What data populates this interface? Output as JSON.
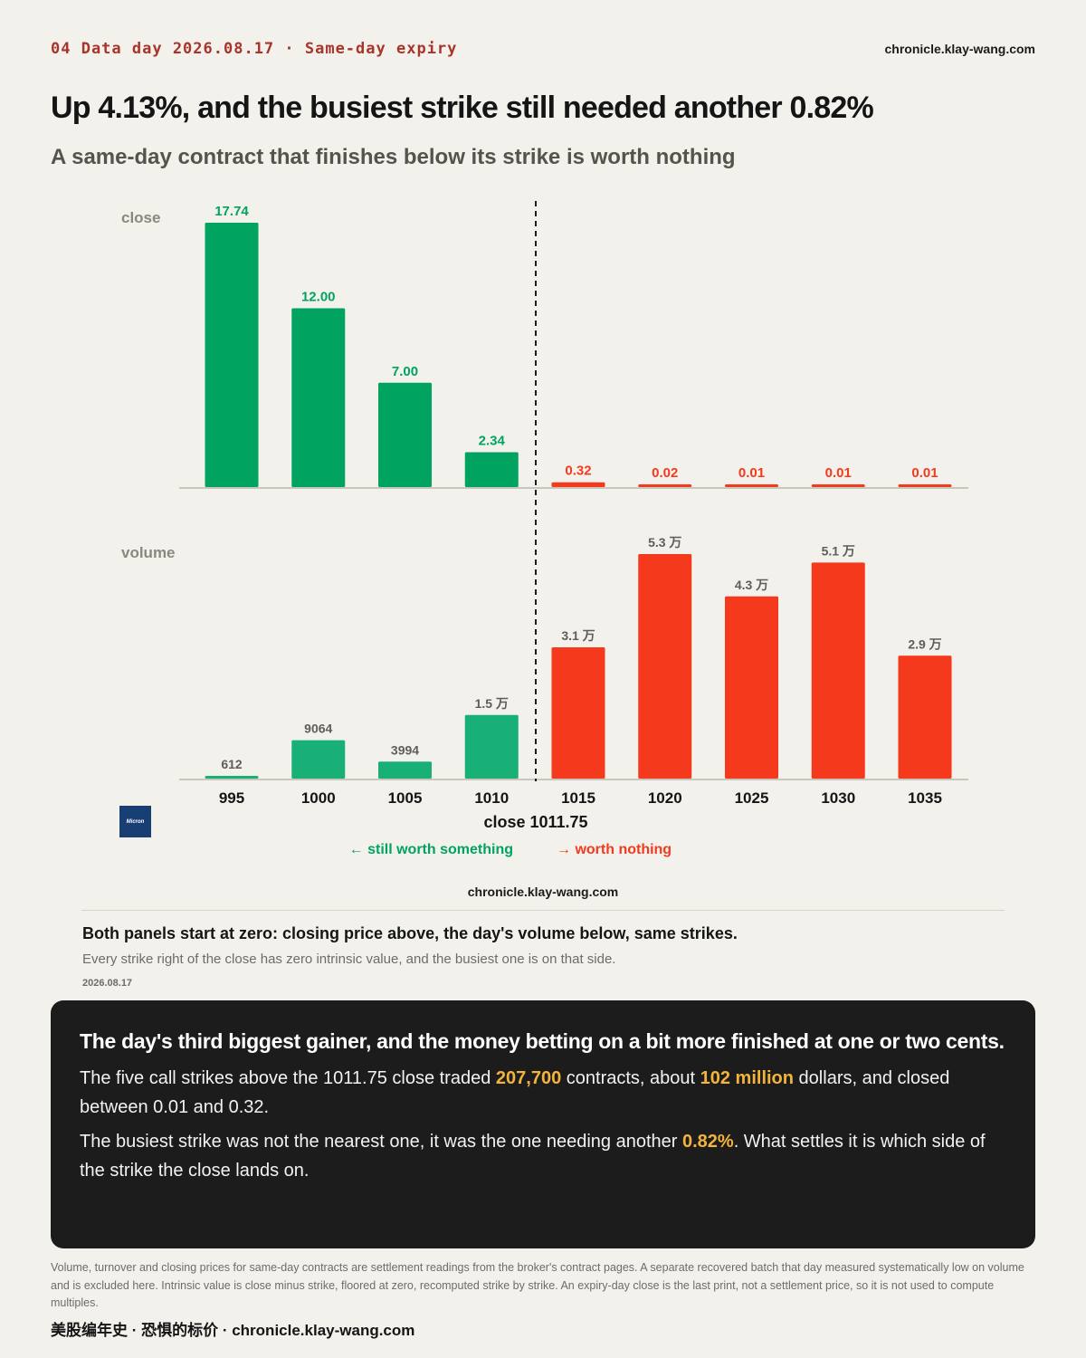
{
  "header": {
    "kicker": "04  Data day 2026.08.17 · Same-day expiry",
    "site": "chronicle.klay-wang.com",
    "title": "Up 4.13%, and the busiest strike still needed another 0.82%",
    "subtitle": "A same-day contract that finishes below its strike is worth nothing"
  },
  "colors": {
    "green": "#00a35f",
    "green_volume": "#18b077",
    "red": "#f5391c",
    "axis": "#c9c6bd",
    "panel_label": "#8a877e",
    "volume_label": "#5f5d57",
    "highlight": "#f2b43c",
    "dark_box": "#1c1c1c"
  },
  "logo": {
    "text": "Micron",
    "color": "#173f73"
  },
  "chart_data": {
    "type": "bar",
    "categories": [
      "995",
      "1000",
      "1005",
      "1010",
      "1015",
      "1020",
      "1025",
      "1030",
      "1035"
    ],
    "panels": [
      {
        "label": "close",
        "values": [
          17.74,
          12.0,
          7.0,
          2.34,
          0.32,
          0.02,
          0.01,
          0.01,
          0.01
        ],
        "value_labels": [
          "17.74",
          "12.00",
          "7.00",
          "2.34",
          "0.32",
          "0.02",
          "0.01",
          "0.01",
          "0.01"
        ],
        "ylim": [
          0,
          17.74
        ]
      },
      {
        "label": "volume",
        "values": [
          612,
          9064,
          3994,
          15000,
          31000,
          53000,
          43000,
          51000,
          29000
        ],
        "value_labels": [
          "612",
          "9064",
          "3994",
          "1.5 万",
          "3.1 万",
          "5.3 万",
          "4.3 万",
          "5.1 万",
          "2.9 万"
        ],
        "ylim": [
          0,
          53000
        ]
      }
    ],
    "split_after_index": 3,
    "close_label": "close 1011.75",
    "left_legend": "← still worth something",
    "right_legend": "→ worth nothing",
    "grid": false
  },
  "chart_footer": {
    "site": "chronicle.klay-wang.com",
    "note_title": "Both panels start at zero: closing price above, the day's volume below, same strikes.",
    "note_sub": "Every strike right of the close has zero intrinsic value, and the busiest one is on that side.",
    "date": "2026.08.17"
  },
  "box": {
    "heading": "The day's third biggest gainer, and the money betting on a bit more finished at one or two cents.",
    "p1_a": "The five call strikes above the 1011.75 close traded ",
    "p1_h1": "207,700",
    "p1_b": " contracts, about ",
    "p1_h2": "102 million",
    "p1_c": " dollars, and closed between 0.01 and 0.32.",
    "p2_a": "The busiest strike was not the nearest one, it was the one needing another ",
    "p2_h": "0.82%",
    "p2_b": ". What settles it is which side of the strike the close lands on."
  },
  "footer": {
    "text": "Volume, turnover and closing prices for same-day contracts are settlement readings from the broker's contract pages. A separate recovered batch that day measured systematically low on volume and is excluded here. Intrinsic value is close minus strike, floored at zero, recomputed strike by strike. An expiry-day close is the last print, not a settlement price, so it is not used to compute multiples.",
    "brand": "美股编年史 · 恐惧的标价 · chronicle.klay-wang.com"
  }
}
